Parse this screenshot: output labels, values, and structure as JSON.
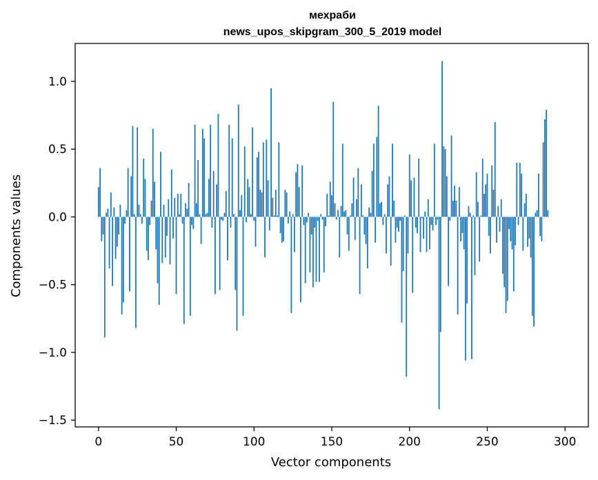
{
  "chart_data": {
    "type": "bar",
    "title_line1": "мехраби",
    "title_line2": "news_upos_skipgram_300_5_2019 model",
    "xlabel": "Vector components",
    "ylabel": "Components values",
    "xlim": [
      -15,
      315
    ],
    "ylim": [
      -1.55,
      1.28
    ],
    "xticks": [
      0,
      50,
      100,
      150,
      200,
      250,
      300
    ],
    "xtick_labels": [
      "0",
      "50",
      "100",
      "150",
      "200",
      "250",
      "300"
    ],
    "yticks": [
      -1.5,
      -1.0,
      -0.5,
      0.0,
      0.5,
      1.0
    ],
    "ytick_labels": [
      "−1.5",
      "−1.0",
      "−0.5",
      "0.0",
      "0.5",
      "1.0"
    ],
    "bar_color": "#1f77b4",
    "grid": false,
    "x_start": 0,
    "values": [
      0.22,
      0.36,
      -0.18,
      -0.13,
      -0.89,
      0.03,
      0.06,
      -0.38,
      0.18,
      -0.51,
      0.07,
      -0.31,
      -0.22,
      -0.13,
      0.09,
      -0.72,
      -0.63,
      -0.05,
      0.05,
      0.36,
      -0.55,
      0.3,
      0.67,
      0.02,
      -0.82,
      0.66,
      0.09,
      0.02,
      -0.05,
      0.43,
      0.28,
      -0.25,
      -0.32,
      -0.06,
      0.12,
      0.65,
      0.26,
      -0.24,
      -0.49,
      -0.65,
      0.48,
      -0.34,
      0.09,
      -0.3,
      -0.14,
      0.13,
      -0.35,
      0.35,
      -0.16,
      0.14,
      -0.57,
      0.17,
      0.02,
      0.17,
      -0.05,
      -0.79,
      0.1,
      0.06,
      0.25,
      -0.73,
      -0.06,
      -0.09,
      0.68,
      0.1,
      0.42,
      0.02,
      -0.2,
      0.65,
      0.58,
      0.02,
      0.03,
      0.28,
      0.68,
      -0.08,
      0.34,
      -0.57,
      0.24,
      0.76,
      -0.54,
      -0.02,
      -0.03,
      0.03,
      0.19,
      -0.32,
      0.68,
      -0.08,
      0.58,
      0.02,
      -0.54,
      -0.84,
      0.83,
      0.05,
      0.16,
      -0.73,
      0.52,
      -0.04,
      0.28,
      0.22,
      0.02,
      0.66,
      -0.03,
      -0.22,
      0.44,
      0.48,
      0.2,
      0.18,
      0.55,
      -0.3,
      0.57,
      0.27,
      -0.1,
      0.95,
      0.14,
      0.01,
      0.2,
      0.01,
      0.55,
      -0.12,
      -0.19,
      -0.18,
      0.2,
      0.18,
      -0.05,
      0.04,
      -0.71,
      0.02,
      -0.26,
      0.33,
      0.39,
      0.22,
      -0.63,
      0.38,
      -0.06,
      -0.49,
      -0.04,
      0.03,
      -0.41,
      -0.13,
      -0.52,
      -0.08,
      -0.48,
      -0.03,
      -0.48,
      0.02,
      -0.02,
      -0.41,
      -0.07,
      0.17,
      0.01,
      0.26,
      0.16,
      0.85,
      0.1,
      -0.02,
      0.05,
      -0.3,
      0.08,
      0.54,
      0.04,
      0.05,
      -0.13,
      -0.25,
      0.01,
      0.1,
      0.29,
      -0.17,
      0.13,
      0.36,
      -0.57,
      0.24,
      0.01,
      -0.13,
      -0.2,
      -0.38,
      0.07,
      0.03,
      0.34,
      0.54,
      -0.19,
      0.59,
      0.82,
      0.1,
      0.11,
      -0.06,
      0.02,
      -0.27,
      0.24,
      0.3,
      -0.36,
      0.54,
      0.12,
      -0.19,
      -0.08,
      -0.11,
      -0.03,
      -0.78,
      -0.4,
      0.01,
      -1.18,
      -0.27,
      0.46,
      0.27,
      -0.56,
      0.29,
      -0.08,
      -0.12,
      0.43,
      -0.26,
      -0.01,
      -0.16,
      0.04,
      -0.26,
      0.13,
      -0.24,
      -0.06,
      -0.1,
      0.54,
      -0.06,
      -0.02,
      -1.42,
      -0.85,
      1.15,
      0.52,
      0.5,
      0.3,
      -0.51,
      -0.03,
      0.6,
      0.12,
      0.23,
      0.12,
      -0.72,
      0.22,
      -0.18,
      -0.12,
      -0.24,
      -1.06,
      -0.64,
      0.08,
      0.03,
      -1.05,
      0.01,
      -0.43,
      0.33,
      0.11,
      -0.33,
      0.01,
      0.43,
      0.17,
      0.24,
      0.32,
      -0.14,
      -0.27,
      0.38,
      0.2,
      0.7,
      -0.19,
      0.08,
      -0.11,
      0.13,
      -0.42,
      -0.52,
      -0.71,
      -0.62,
      -0.09,
      -0.18,
      -0.24,
      -0.55,
      -0.21,
      0.4,
      -0.06,
      0.4,
      0.32,
      -0.25,
      0.1,
      0.17,
      -0.22,
      -0.16,
      -0.3,
      -0.73,
      -0.81,
      0.03,
      0.05,
      0.32,
      -0.14,
      -0.18,
      0.55,
      0.72,
      0.79,
      0.05
    ]
  }
}
